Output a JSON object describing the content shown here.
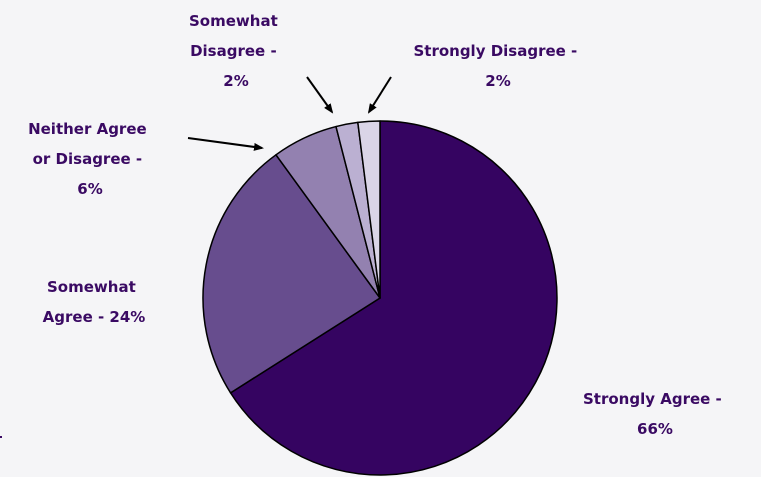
{
  "chart_data": {
    "type": "pie",
    "title": "",
    "slices": [
      {
        "name": "Strongly Agree",
        "value": 66,
        "color": "#350461",
        "label_lines": [
          "Strongly Agree -",
          "66%"
        ]
      },
      {
        "name": "Somewhat Agree",
        "value": 24,
        "color": "#674d8e",
        "label_lines": [
          "Somewhat",
          "Agree - 24%"
        ]
      },
      {
        "name": "Neither Agree or Disagree",
        "value": 6,
        "color": "#9381b0",
        "label_lines": [
          "Neither Agree",
          "or Disagree -",
          "6%"
        ]
      },
      {
        "name": "Somewhat Disagree",
        "value": 2,
        "color": "#bbb0d2",
        "label_lines": [
          "Somewhat",
          "Disagree -",
          "2%"
        ]
      },
      {
        "name": "Strongly Disagree",
        "value": 2,
        "color": "#dad5e7",
        "label_lines": [
          "Strongly Disagree -",
          "2%"
        ]
      }
    ],
    "label_color": "#3a0a63",
    "edge_color": "#000000",
    "legend": "none"
  }
}
